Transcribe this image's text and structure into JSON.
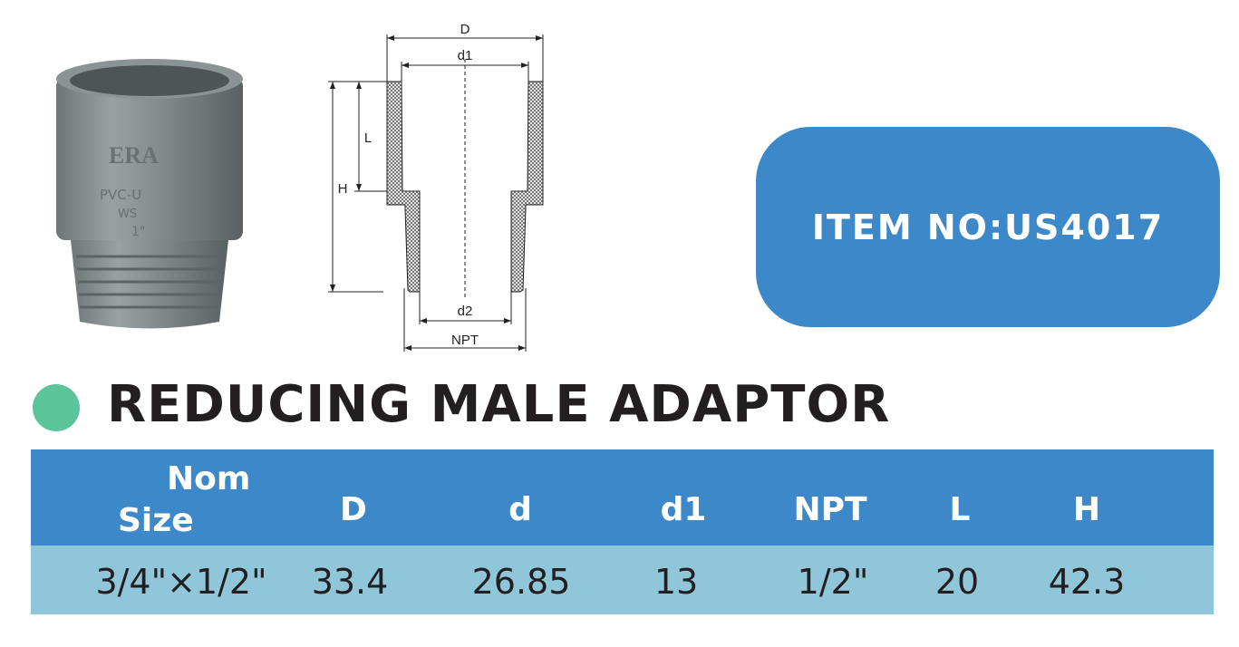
{
  "photo": {
    "lettering": [
      "ERA",
      "PVC-U",
      "WS",
      "1\""
    ]
  },
  "diagram": {
    "labels": {
      "D": "D",
      "d1": "d1",
      "L": "L",
      "H": "H",
      "d2": "d2",
      "NPT": "NPT"
    }
  },
  "item_no": "ITEM NO:US4017",
  "product_title": "REDUCING MALE ADAPTOR",
  "colors": {
    "header_blue": "#3d88c9",
    "row_blue": "#8fc6d9",
    "accent_green": "#5cc49a"
  },
  "table": {
    "headers": {
      "nom_line1": "Nom",
      "nom_line2": "Size",
      "D": "D",
      "d": "d",
      "d1": "d1",
      "NPT": "NPT",
      "L": "L",
      "H": "H"
    },
    "rows": [
      {
        "nom": "3/4\"×1/2\"",
        "D": "33.4",
        "d": "26.85",
        "d1": "13",
        "NPT": "1/2\"",
        "L": "20",
        "H": "42.3"
      }
    ]
  }
}
